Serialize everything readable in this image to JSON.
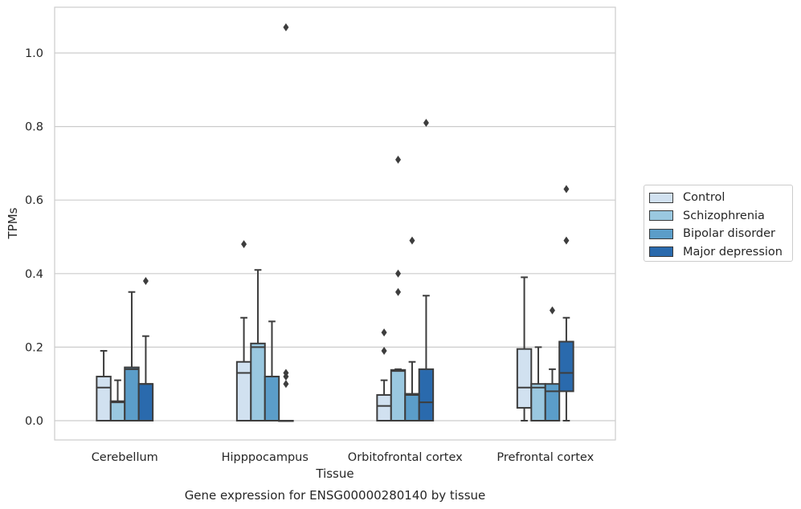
{
  "chart_data": {
    "type": "box",
    "caption": "Gene expression for ENSG00000280140 by tissue",
    "xlabel": "Tissue",
    "ylabel": "TPMs",
    "ylim": [
      -0.05,
      1.13
    ],
    "yticks": [
      "0.0",
      "0.2",
      "0.4",
      "0.6",
      "0.8",
      "1.0"
    ],
    "grid": true,
    "legend_position": "right",
    "categories": [
      "Cerebellum",
      "Hipppocampus",
      "Orbitofrontal cortex",
      "Prefrontal cortex"
    ],
    "series": [
      {
        "name": "Control",
        "color": "#d1e1f0",
        "boxes": [
          {
            "min": 0.0,
            "q1": 0.0,
            "median": 0.09,
            "q3": 0.12,
            "max": 0.19,
            "outliers": []
          },
          {
            "min": 0.0,
            "q1": 0.0,
            "median": 0.13,
            "q3": 0.16,
            "max": 0.28,
            "outliers": [
              0.48
            ]
          },
          {
            "min": 0.0,
            "q1": 0.0,
            "median": 0.04,
            "q3": 0.07,
            "max": 0.11,
            "outliers": [
              0.19,
              0.24
            ]
          },
          {
            "min": 0.0,
            "q1": 0.035,
            "median": 0.09,
            "q3": 0.195,
            "max": 0.39,
            "outliers": []
          }
        ]
      },
      {
        "name": "Schizophrenia",
        "color": "#9ac8e0",
        "boxes": [
          {
            "min": 0.0,
            "q1": 0.0,
            "median": 0.05,
            "q3": 0.053,
            "max": 0.11,
            "outliers": []
          },
          {
            "min": 0.0,
            "q1": 0.0,
            "median": 0.2,
            "q3": 0.21,
            "max": 0.41,
            "outliers": []
          },
          {
            "min": 0.0,
            "q1": 0.0,
            "median": 0.135,
            "q3": 0.138,
            "max": 0.14,
            "outliers": [
              0.35,
              0.4,
              0.71
            ]
          },
          {
            "min": 0.0,
            "q1": 0.0,
            "median": 0.09,
            "q3": 0.1,
            "max": 0.2,
            "outliers": []
          }
        ]
      },
      {
        "name": "Bipolar disorder",
        "color": "#5b9dc9",
        "boxes": [
          {
            "min": 0.0,
            "q1": 0.0,
            "median": 0.14,
            "q3": 0.145,
            "max": 0.35,
            "outliers": []
          },
          {
            "min": 0.0,
            "q1": 0.0,
            "median": 0.12,
            "q3": 0.12,
            "max": 0.27,
            "outliers": []
          },
          {
            "min": 0.0,
            "q1": 0.0,
            "median": 0.07,
            "q3": 0.073,
            "max": 0.16,
            "outliers": [
              0.49
            ]
          },
          {
            "min": 0.0,
            "q1": 0.0,
            "median": 0.08,
            "q3": 0.1,
            "max": 0.14,
            "outliers": [
              0.3
            ]
          }
        ]
      },
      {
        "name": "Major depression",
        "color": "#2a6aad",
        "boxes": [
          {
            "min": 0.0,
            "q1": 0.0,
            "median": 0.1,
            "q3": 0.1,
            "max": 0.23,
            "outliers": [
              0.38
            ]
          },
          {
            "min": 0.0,
            "q1": 0.0,
            "median": 0.0,
            "q3": 0.0,
            "max": 0.0,
            "outliers": [
              0.1,
              0.12,
              0.13,
              1.07
            ]
          },
          {
            "min": 0.0,
            "q1": 0.0,
            "median": 0.05,
            "q3": 0.14,
            "max": 0.34,
            "outliers": [
              0.81
            ]
          },
          {
            "min": 0.0,
            "q1": 0.08,
            "median": 0.13,
            "q3": 0.215,
            "max": 0.28,
            "outliers": [
              0.49,
              0.63
            ]
          }
        ]
      }
    ]
  }
}
